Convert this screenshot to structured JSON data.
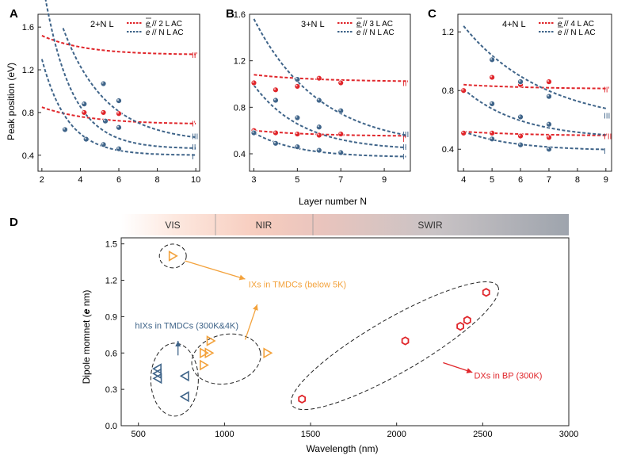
{
  "colors": {
    "red": "#e0262b",
    "blue": "#3f6489",
    "orange": "#f3a23c",
    "axis": "#222222",
    "hex": "#e0262b"
  },
  "panel_labels": [
    "A",
    "B",
    "C",
    "D"
  ],
  "shared": {
    "ylabel_top": "Peak position (eV)",
    "xlabel_top": "Layer number N",
    "ylabel_d_prefix": "Dipole momnet (",
    "ylabel_d_e": "e",
    "ylabel_d_suffix": " nm)",
    "xlabel_d": "Wavelength (nm)"
  },
  "spectrum_bands": [
    "VIS",
    "NIR",
    "SWIR"
  ],
  "chart_data": [
    {
      "type": "scatter",
      "id": "A",
      "title": "2+N L",
      "legend": [
        {
          "symbol": "e",
          "text": "// 2 L AC",
          "color": "red"
        },
        {
          "symbol": "e",
          "text": "// N L AC",
          "color": "blue"
        }
      ],
      "xlim": [
        1.8,
        10.2
      ],
      "ylim": [
        0.25,
        1.72
      ],
      "xticks": [
        2,
        4,
        6,
        8,
        10
      ],
      "yticks": [
        0.4,
        0.8,
        1.2,
        1.6
      ],
      "ytick_labels": [
        "0.4",
        "0.8",
        "1.2",
        "1.6"
      ],
      "fits": [
        {
          "color": "red",
          "x0": 2,
          "x1": 10,
          "a": 1.34,
          "b": 0.18,
          "c": 0.45
        },
        {
          "color": "red",
          "x0": 2,
          "x1": 10,
          "a": 0.69,
          "b": 0.16,
          "c": 0.4
        },
        {
          "color": "blue",
          "x0": 3.1,
          "x1": 10,
          "a": 0.52,
          "b": 1.07,
          "c": 0.45
        },
        {
          "color": "blue",
          "x0": 2,
          "x1": 10,
          "a": 0.46,
          "b": 1.6,
          "c": 0.7
        },
        {
          "color": "blue",
          "x0": 2,
          "x1": 10,
          "a": 0.4,
          "b": 0.9,
          "c": 0.75
        }
      ],
      "points": [
        {
          "x": 4.2,
          "y": 0.8,
          "color": "red"
        },
        {
          "x": 5.2,
          "y": 0.8,
          "color": "red"
        },
        {
          "x": 6.0,
          "y": 0.79,
          "color": "red"
        },
        {
          "x": 4.2,
          "y": 0.88,
          "color": "blue"
        },
        {
          "x": 5.2,
          "y": 1.07,
          "color": "blue"
        },
        {
          "x": 6.0,
          "y": 0.91,
          "color": "blue"
        },
        {
          "x": 3.2,
          "y": 0.64,
          "color": "blue"
        },
        {
          "x": 4.3,
          "y": 0.55,
          "color": "blue"
        },
        {
          "x": 5.2,
          "y": 0.5,
          "color": "blue"
        },
        {
          "x": 6.0,
          "y": 0.46,
          "color": "blue"
        },
        {
          "x": 5.3,
          "y": 0.72,
          "color": "blue"
        },
        {
          "x": 6.0,
          "y": 0.66,
          "color": "blue"
        }
      ],
      "curve_labels": [
        {
          "text": "II'",
          "y": 1.34,
          "color": "red"
        },
        {
          "text": "I'",
          "y": 0.7,
          "color": "red"
        },
        {
          "text": "III",
          "y": 0.58,
          "color": "blue"
        },
        {
          "text": "II",
          "y": 0.48,
          "color": "blue"
        },
        {
          "text": "I",
          "y": 0.39,
          "color": "blue"
        }
      ]
    },
    {
      "type": "scatter",
      "id": "B",
      "title": "3+N L",
      "legend": [
        {
          "symbol": "e",
          "text": "// 3 L AC",
          "color": "red"
        },
        {
          "symbol": "e",
          "text": "// N L AC",
          "color": "blue"
        }
      ],
      "xlim": [
        2.8,
        10.2
      ],
      "ylim": [
        0.25,
        1.6
      ],
      "xticks": [
        3,
        5,
        7,
        9
      ],
      "yticks": [
        0.4,
        0.8,
        1.2,
        1.6
      ],
      "ytick_labels": [
        "0.4",
        "0.8",
        "1.2",
        "1.6"
      ],
      "fits": [
        {
          "color": "red",
          "x0": 3,
          "x1": 10,
          "a": 1.02,
          "b": 0.06,
          "c": 0.35
        },
        {
          "color": "red",
          "x0": 3,
          "x1": 10,
          "a": 0.55,
          "b": 0.05,
          "c": 0.35
        },
        {
          "color": "blue",
          "x0": 3,
          "x1": 10,
          "a": 0.45,
          "b": 1.11,
          "c": 0.33
        },
        {
          "color": "blue",
          "x0": 3,
          "x1": 10,
          "a": 0.43,
          "b": 0.56,
          "c": 0.45
        },
        {
          "color": "blue",
          "x0": 3,
          "x1": 10,
          "a": 0.37,
          "b": 0.21,
          "c": 0.5
        }
      ],
      "points": [
        {
          "x": 3.0,
          "y": 1.01,
          "color": "red"
        },
        {
          "x": 4.0,
          "y": 0.95,
          "color": "red"
        },
        {
          "x": 5.0,
          "y": 0.98,
          "color": "red"
        },
        {
          "x": 6.0,
          "y": 1.05,
          "color": "red"
        },
        {
          "x": 7.0,
          "y": 1.01,
          "color": "red"
        },
        {
          "x": 3.0,
          "y": 0.6,
          "color": "red"
        },
        {
          "x": 4.0,
          "y": 0.58,
          "color": "red"
        },
        {
          "x": 5.0,
          "y": 0.57,
          "color": "red"
        },
        {
          "x": 6.0,
          "y": 0.56,
          "color": "red"
        },
        {
          "x": 7.0,
          "y": 0.57,
          "color": "red"
        },
        {
          "x": 4.0,
          "y": 0.86,
          "color": "blue"
        },
        {
          "x": 5.0,
          "y": 1.04,
          "color": "blue"
        },
        {
          "x": 6.0,
          "y": 0.86,
          "color": "blue"
        },
        {
          "x": 7.0,
          "y": 0.77,
          "color": "blue"
        },
        {
          "x": 3.0,
          "y": 0.58,
          "color": "blue"
        },
        {
          "x": 4.0,
          "y": 0.49,
          "color": "blue"
        },
        {
          "x": 5.0,
          "y": 0.46,
          "color": "blue"
        },
        {
          "x": 6.0,
          "y": 0.43,
          "color": "blue"
        },
        {
          "x": 7.0,
          "y": 0.41,
          "color": "blue"
        },
        {
          "x": 5.0,
          "y": 0.71,
          "color": "blue"
        },
        {
          "x": 6.0,
          "y": 0.63,
          "color": "blue"
        }
      ],
      "curve_labels": [
        {
          "text": "II'",
          "y": 1.01,
          "color": "red"
        },
        {
          "text": "III",
          "y": 0.57,
          "color": "blue"
        },
        {
          "text": "I'",
          "y": 0.53,
          "color": "red"
        },
        {
          "text": "II",
          "y": 0.46,
          "color": "blue"
        },
        {
          "text": "I",
          "y": 0.38,
          "color": "blue"
        }
      ]
    },
    {
      "type": "scatter",
      "id": "C",
      "title": "4+N L",
      "legend": [
        {
          "symbol": "e",
          "text": "// 4 L AC",
          "color": "red"
        },
        {
          "symbol": "e",
          "text": "// N L AC",
          "color": "blue"
        }
      ],
      "xlim": [
        3.8,
        9.2
      ],
      "ylim": [
        0.25,
        1.32
      ],
      "xticks": [
        4,
        5,
        6,
        7,
        8,
        9
      ],
      "yticks": [
        0.4,
        0.8,
        1.2
      ],
      "ytick_labels": [
        "0.4",
        "0.8",
        "1.2"
      ],
      "fits": [
        {
          "color": "red",
          "x0": 4,
          "x1": 9,
          "a": 0.81,
          "b": 0.03,
          "c": 0.4
        },
        {
          "color": "red",
          "x0": 4,
          "x1": 9,
          "a": 0.49,
          "b": 0.03,
          "c": 0.4
        },
        {
          "color": "blue",
          "x0": 4,
          "x1": 9,
          "a": 0.56,
          "b": 0.68,
          "c": 0.35
        },
        {
          "color": "blue",
          "x0": 4,
          "x1": 9,
          "a": 0.47,
          "b": 0.34,
          "c": 0.5
        },
        {
          "color": "blue",
          "x0": 4,
          "x1": 9,
          "a": 0.39,
          "b": 0.13,
          "c": 0.55
        }
      ],
      "points": [
        {
          "x": 4.0,
          "y": 0.8,
          "color": "red"
        },
        {
          "x": 5.0,
          "y": 0.89,
          "color": "red"
        },
        {
          "x": 6.0,
          "y": 0.84,
          "color": "red"
        },
        {
          "x": 7.0,
          "y": 0.86,
          "color": "red"
        },
        {
          "x": 4.0,
          "y": 0.51,
          "color": "red"
        },
        {
          "x": 5.0,
          "y": 0.51,
          "color": "red"
        },
        {
          "x": 6.0,
          "y": 0.49,
          "color": "red"
        },
        {
          "x": 7.0,
          "y": 0.48,
          "color": "red"
        },
        {
          "x": 5.0,
          "y": 1.01,
          "color": "blue"
        },
        {
          "x": 6.0,
          "y": 0.86,
          "color": "blue"
        },
        {
          "x": 7.0,
          "y": 0.76,
          "color": "blue"
        },
        {
          "x": 5.0,
          "y": 0.71,
          "color": "blue"
        },
        {
          "x": 6.0,
          "y": 0.62,
          "color": "blue"
        },
        {
          "x": 7.0,
          "y": 0.57,
          "color": "blue"
        },
        {
          "x": 5.0,
          "y": 0.47,
          "color": "blue"
        },
        {
          "x": 6.0,
          "y": 0.43,
          "color": "blue"
        },
        {
          "x": 7.0,
          "y": 0.4,
          "color": "blue"
        }
      ],
      "curve_labels": [
        {
          "text": "II'",
          "y": 0.81,
          "color": "red"
        },
        {
          "text": "III",
          "y": 0.63,
          "color": "blue"
        },
        {
          "text": "I'II",
          "y": 0.49,
          "color": "red"
        },
        {
          "text": "I",
          "y": 0.39,
          "color": "blue"
        }
      ]
    },
    {
      "type": "scatter",
      "id": "D",
      "title": "",
      "xlabel": "Wavelength (nm)",
      "xlim": [
        400,
        3000
      ],
      "ylim": [
        0.0,
        1.55
      ],
      "xticks": [
        500,
        1000,
        1500,
        2000,
        2500,
        3000
      ],
      "yticks": [
        0.0,
        0.3,
        0.6,
        0.9,
        1.2,
        1.5
      ],
      "ytick_labels": [
        "0.0",
        "0.3",
        "0.6",
        "0.9",
        "1.2",
        "1.5"
      ],
      "series": [
        {
          "name": "hIXs in TMDCs (300K&4K)",
          "color": "blue",
          "marker": "triangle-left",
          "points": [
            [
              610,
              0.47
            ],
            [
              610,
              0.43
            ],
            [
              612,
              0.39
            ],
            [
              770,
              0.41
            ],
            [
              770,
              0.24
            ]
          ]
        },
        {
          "name": "IXs in TMDCs (below 5K)",
          "color": "orange",
          "marker": "triangle-right",
          "points": [
            [
              700,
              1.4
            ],
            [
              880,
              0.6
            ],
            [
              910,
              0.6
            ],
            [
              920,
              0.7
            ],
            [
              880,
              0.5
            ],
            [
              1250,
              0.6
            ]
          ]
        },
        {
          "name": "DXs in BP (300K)",
          "color": "red",
          "marker": "hexagon",
          "points": [
            [
              1450,
              0.22
            ],
            [
              2050,
              0.7
            ],
            [
              2370,
              0.82
            ],
            [
              2410,
              0.87
            ],
            [
              2520,
              1.1
            ]
          ]
        }
      ],
      "annotations": [
        {
          "text": "IXs in TMDCs (below 5K)",
          "color": "orange"
        },
        {
          "text": "hIXs in TMDCs (300K&4K)",
          "color": "blue"
        },
        {
          "text": "DXs in BP (300K)",
          "color": "red"
        }
      ]
    }
  ]
}
